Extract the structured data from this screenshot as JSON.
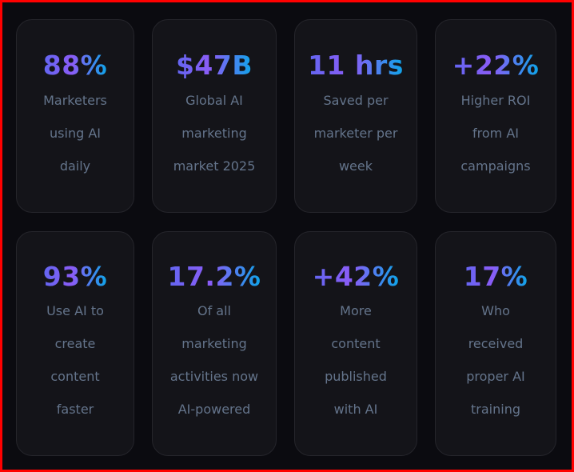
{
  "stats": [
    {
      "value": "88%",
      "label_lines": [
        "Marketers",
        "using AI",
        "daily"
      ]
    },
    {
      "value": "$47B",
      "label_lines": [
        "Global AI",
        "marketing",
        "market 2025"
      ]
    },
    {
      "value": "11 hrs",
      "label_lines": [
        "Saved per",
        "marketer per",
        "week"
      ]
    },
    {
      "value": "+22%",
      "label_lines": [
        "Higher ROI",
        "from AI",
        "campaigns"
      ]
    },
    {
      "value": "93%",
      "label_lines": [
        "Use AI to",
        "create",
        "content",
        "faster"
      ]
    },
    {
      "value": "17.2%",
      "label_lines": [
        "Of all",
        "marketing",
        "activities now",
        "AI-powered"
      ]
    },
    {
      "value": "+42%",
      "label_lines": [
        "More",
        "content",
        "published",
        "with AI"
      ]
    },
    {
      "value": "17%",
      "label_lines": [
        "Who",
        "received",
        "proper AI",
        "training"
      ]
    }
  ],
  "colors": {
    "gradient_start": "#6366f1",
    "gradient_mid": "#8b5cf6",
    "gradient_end": "#0ea5e9",
    "label": "#64748b",
    "card_bg": "#141419",
    "page_bg": "#0b0b10"
  }
}
